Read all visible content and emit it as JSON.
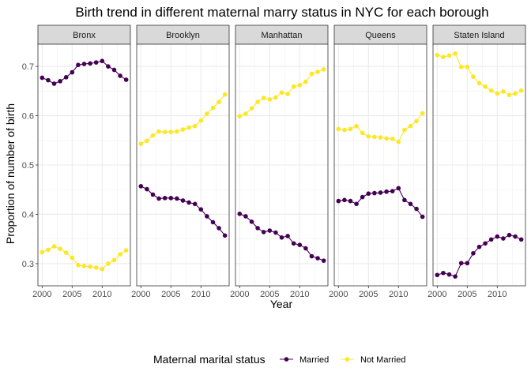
{
  "chart_data": {
    "type": "line",
    "title": "Birth trend in different maternal marry status in NYC for each borough",
    "xlabel": "Year",
    "ylabel": "Proportion of number of birth",
    "x": [
      2000,
      2001,
      2002,
      2003,
      2004,
      2005,
      2006,
      2007,
      2008,
      2009,
      2010,
      2011,
      2012,
      2013,
      2014
    ],
    "xlim": [
      1999.3,
      2014.7
    ],
    "ylim": [
      0.255,
      0.745
    ],
    "x_ticks": [
      2000,
      2005,
      2010
    ],
    "x_tick_labels": [
      "2000",
      "2005",
      "2010"
    ],
    "y_ticks": [
      0.3,
      0.4,
      0.5,
      0.6,
      0.7
    ],
    "y_tick_labels": [
      "0.3",
      "0.4",
      "0.5",
      "0.6",
      "0.7"
    ],
    "grid": true,
    "legend": {
      "title": "Maternal marital status",
      "position": "bottom",
      "entries": [
        "Married",
        "Not Married"
      ]
    },
    "colors": {
      "Married": "#440154",
      "Not Married": "#fde725"
    },
    "panels": [
      {
        "name": "Bronx",
        "series": [
          {
            "name": "Married",
            "values": [
              0.677,
              0.672,
              0.665,
              0.67,
              0.678,
              0.688,
              0.703,
              0.705,
              0.706,
              0.708,
              0.711,
              0.7,
              0.693,
              0.681,
              0.673
            ]
          },
          {
            "name": "Not Married",
            "values": [
              0.323,
              0.328,
              0.335,
              0.33,
              0.322,
              0.312,
              0.297,
              0.295,
              0.294,
              0.292,
              0.289,
              0.3,
              0.307,
              0.319,
              0.327
            ]
          }
        ]
      },
      {
        "name": "Brooklyn",
        "series": [
          {
            "name": "Married",
            "values": [
              0.457,
              0.451,
              0.44,
              0.432,
              0.433,
              0.433,
              0.432,
              0.428,
              0.424,
              0.421,
              0.41,
              0.396,
              0.384,
              0.372,
              0.357
            ]
          },
          {
            "name": "Not Married",
            "values": [
              0.543,
              0.549,
              0.56,
              0.568,
              0.567,
              0.567,
              0.568,
              0.572,
              0.576,
              0.579,
              0.59,
              0.604,
              0.616,
              0.628,
              0.643
            ]
          }
        ]
      },
      {
        "name": "Manhattan",
        "series": [
          {
            "name": "Married",
            "values": [
              0.401,
              0.396,
              0.385,
              0.372,
              0.364,
              0.367,
              0.363,
              0.353,
              0.356,
              0.341,
              0.338,
              0.331,
              0.315,
              0.311,
              0.306
            ]
          },
          {
            "name": "Not Married",
            "values": [
              0.599,
              0.604,
              0.615,
              0.628,
              0.636,
              0.633,
              0.637,
              0.647,
              0.644,
              0.659,
              0.662,
              0.669,
              0.685,
              0.689,
              0.694
            ]
          }
        ]
      },
      {
        "name": "Queens",
        "series": [
          {
            "name": "Married",
            "values": [
              0.427,
              0.429,
              0.427,
              0.421,
              0.435,
              0.442,
              0.443,
              0.444,
              0.446,
              0.447,
              0.453,
              0.429,
              0.421,
              0.411,
              0.395
            ]
          },
          {
            "name": "Not Married",
            "values": [
              0.573,
              0.571,
              0.573,
              0.579,
              0.565,
              0.558,
              0.557,
              0.556,
              0.554,
              0.553,
              0.547,
              0.571,
              0.579,
              0.589,
              0.605
            ]
          }
        ]
      },
      {
        "name": "Staten Island",
        "series": [
          {
            "name": "Married",
            "values": [
              0.277,
              0.281,
              0.278,
              0.274,
              0.301,
              0.301,
              0.321,
              0.334,
              0.341,
              0.349,
              0.355,
              0.351,
              0.358,
              0.355,
              0.349
            ]
          },
          {
            "name": "Not Married",
            "values": [
              0.723,
              0.719,
              0.722,
              0.726,
              0.699,
              0.699,
              0.679,
              0.666,
              0.659,
              0.651,
              0.645,
              0.649,
              0.642,
              0.645,
              0.651
            ]
          }
        ]
      }
    ]
  }
}
